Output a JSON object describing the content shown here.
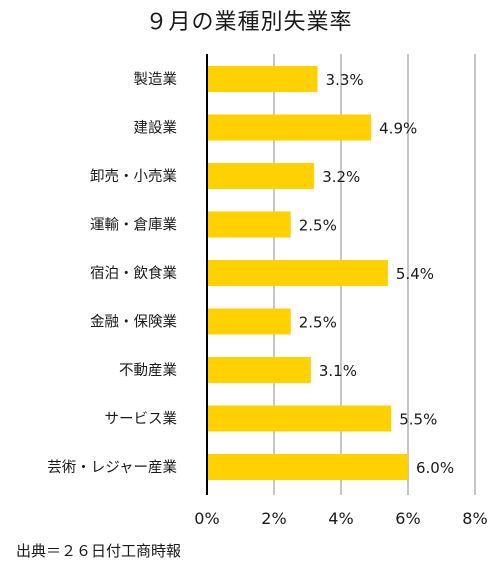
{
  "chart_data": {
    "type": "bar",
    "orientation": "horizontal",
    "title": "９月の業種別失業率",
    "categories": [
      "製造業",
      "建設業",
      "卸売・小売業",
      "運輸・倉庫業",
      "宿泊・飲食業",
      "金融・保険業",
      "不動産業",
      "サービス業",
      "芸術・レジャー産業"
    ],
    "values": [
      3.3,
      4.9,
      3.2,
      2.5,
      5.4,
      2.5,
      3.1,
      5.5,
      6.0
    ],
    "value_labels": [
      "3.3%",
      "4.9%",
      "3.2%",
      "2.5%",
      "5.4%",
      "2.5%",
      "3.1%",
      "5.5%",
      "6.0%"
    ],
    "xticks": [
      0,
      2,
      4,
      6,
      8
    ],
    "xtick_labels": [
      "0%",
      "2%",
      "4%",
      "6%",
      "8%"
    ],
    "xlim": [
      0,
      8
    ],
    "xlabel": "",
    "ylabel": "",
    "grid": "vertical",
    "legend": "none",
    "colors": {
      "bar": "#FFD100",
      "grid": "#b3b3b3",
      "axis": "#000000"
    }
  },
  "source": "出典＝２６日付工商時報"
}
